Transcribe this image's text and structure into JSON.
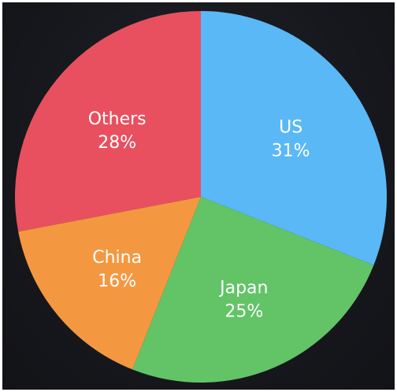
{
  "chart_data": {
    "type": "pie",
    "title": "",
    "start_angle_deg": 0,
    "direction": "clockwise",
    "slices": [
      {
        "label": "US",
        "value_label": "31%",
        "value": 31,
        "color": "#5ab8f6"
      },
      {
        "label": "Japan",
        "value_label": "25%",
        "value": 25,
        "color": "#62c467"
      },
      {
        "label": "China",
        "value_label": "16%",
        "value": 16,
        "color": "#f39841"
      },
      {
        "label": "Others",
        "value_label": "28%",
        "value": 28,
        "color": "#e8505f"
      }
    ]
  }
}
